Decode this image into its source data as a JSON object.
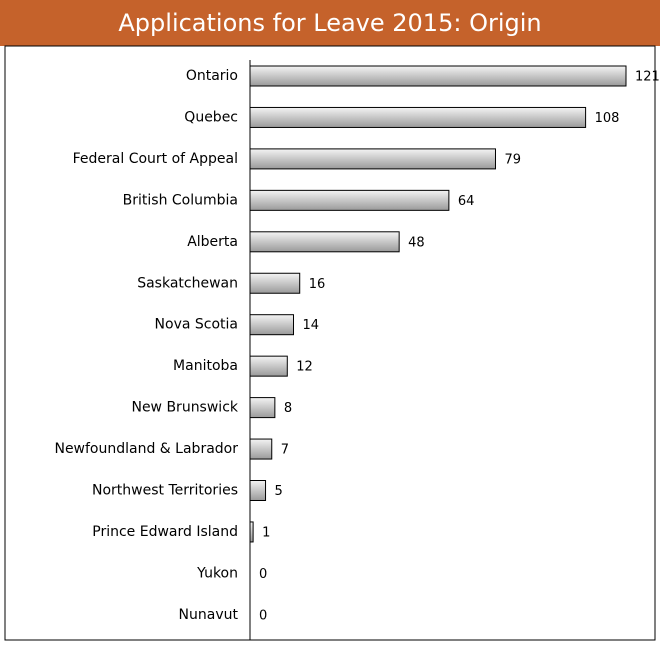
{
  "chart_data": {
    "type": "bar",
    "orientation": "horizontal",
    "title": "Applications for Leave 2015: Origin",
    "categories": [
      "Ontario",
      "Quebec",
      "Federal Court of Appeal",
      "British Columbia",
      "Alberta",
      "Saskatchewan",
      "Nova Scotia",
      "Manitoba",
      "New Brunswick",
      "Newfoundland & Labrador",
      "Northwest Territories",
      "Prince Edward Island",
      "Yukon",
      "Nunavut"
    ],
    "values": [
      121,
      108,
      79,
      64,
      48,
      16,
      14,
      12,
      8,
      7,
      5,
      1,
      0,
      0
    ],
    "color": "#9a9a9a",
    "title_color": "#c5622b"
  }
}
